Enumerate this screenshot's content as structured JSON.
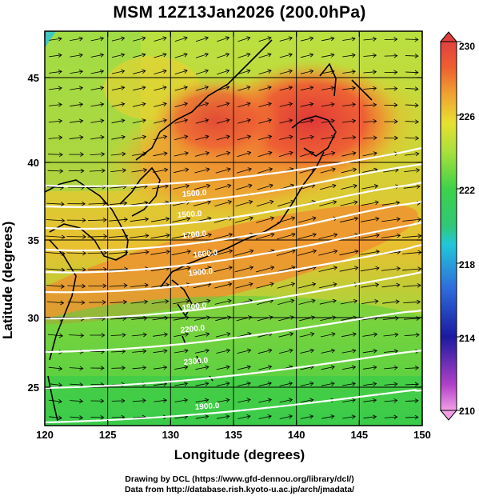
{
  "title": "MSM 12Z13Jan2026 (200.0hPa)",
  "xlabel": "Longitude (degrees)",
  "ylabel": "Latitude  (degrees)",
  "credits": {
    "line1": "Drawing by DCL (https://www.gfd-dennou.org/library/dcl/)",
    "line2": "Data from http://database.rish.kyoto-u.ac.jp/arch/jmadata/"
  },
  "colorbar": {
    "min": 210,
    "max": 230,
    "ticks": [
      "230",
      "226",
      "222",
      "218",
      "214",
      "210"
    ],
    "colors": [
      "#f2a0e6",
      "#b040c8",
      "#1a1aa0",
      "#2f6bdc",
      "#20c8d8",
      "#30c878",
      "#3cd24a",
      "#a8e03a",
      "#e8e030",
      "#f0a030",
      "#ee6030",
      "#e04040"
    ]
  },
  "chart_data": {
    "type": "map",
    "projection": "lat-lon",
    "xlim": [
      120,
      150
    ],
    "ylim": [
      22.5,
      48
    ],
    "xticks": [
      "120",
      "125",
      "130",
      "135",
      "140",
      "145",
      "150"
    ],
    "yticks": [
      "25",
      "30",
      "35",
      "40",
      "45"
    ],
    "shading": "temperature (K)",
    "contours": {
      "color": "white",
      "labels": [
        "1500.0",
        "1500.0",
        "1700.0",
        "1600.0",
        "1900.0",
        "1900.0",
        "2200.0",
        "2300.0",
        "1900.0"
      ]
    },
    "vectors": "wind arrows",
    "grid": true
  }
}
